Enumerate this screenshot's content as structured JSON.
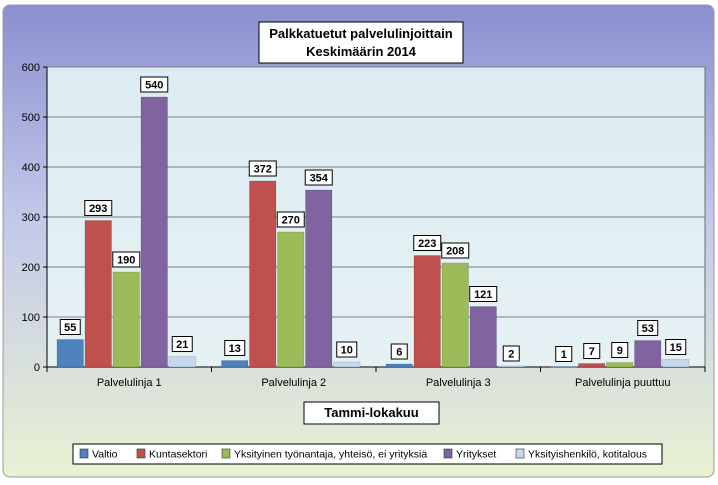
{
  "chart_data": {
    "type": "bar",
    "title": [
      "Palkkatuetut palvelulinjoittain",
      "Keskimäärin 2014"
    ],
    "xlabel": "Tammi-lokakuu",
    "ylabel": "",
    "ylim": [
      0,
      600
    ],
    "yticks": [
      0,
      100,
      200,
      300,
      400,
      500,
      600
    ],
    "categories": [
      "Palvelulinja 1",
      "Palvelulinja 2",
      "Palvelulinja 3",
      "Palvelulinja puuttuu"
    ],
    "series": [
      {
        "name": "Valtio",
        "color": "#4f81bd",
        "values": [
          55,
          13,
          6,
          1
        ]
      },
      {
        "name": "Kuntasektori",
        "color": "#c0504d",
        "values": [
          293,
          372,
          223,
          7
        ]
      },
      {
        "name": "Yksityinen työnantaja, yhteisö, ei yrityksiä",
        "color": "#9bbb59",
        "values": [
          190,
          270,
          208,
          9
        ]
      },
      {
        "name": "Yritykset",
        "color": "#8064a2",
        "values": [
          540,
          354,
          121,
          53
        ]
      },
      {
        "name": "Yksityishenkilö, kotitalous",
        "color": "#c6d9f1",
        "values": [
          21,
          10,
          2,
          15
        ]
      }
    ],
    "data_labels": true,
    "grid": true,
    "legend_position": "bottom"
  }
}
